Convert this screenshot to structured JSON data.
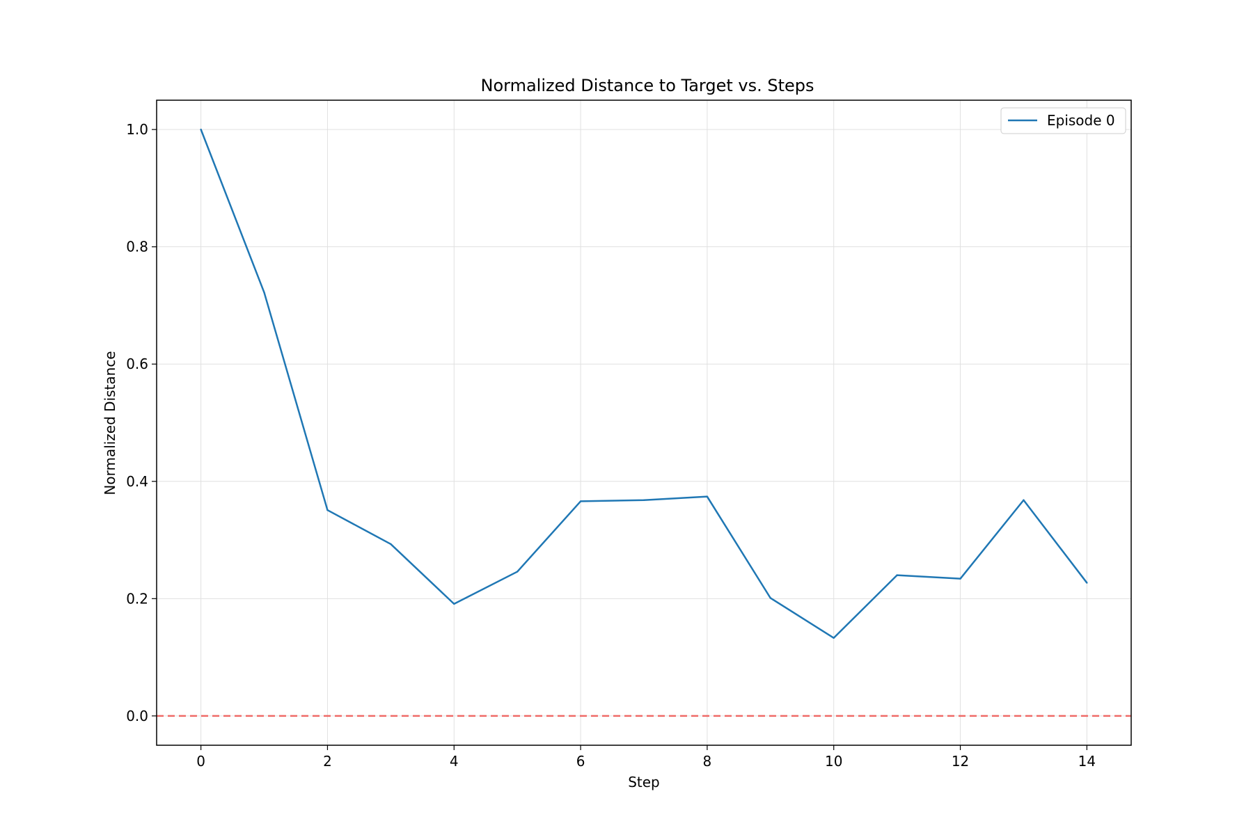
{
  "colors": {
    "series": "#1f77b4",
    "reference": "#ef5350",
    "grid": "#e0e0e0",
    "axis": "#000000"
  },
  "chart_data": {
    "type": "line",
    "title": "Normalized Distance to Target vs. Steps",
    "xlabel": "Step",
    "ylabel": "Normalized Distance",
    "xlim": [
      -0.7,
      14.7
    ],
    "ylim": [
      -0.05,
      1.05
    ],
    "xticks": [
      0,
      2,
      4,
      6,
      8,
      10,
      12,
      14
    ],
    "yticks": [
      0.0,
      0.2,
      0.4,
      0.6,
      0.8,
      1.0
    ],
    "xtick_labels": [
      "0",
      "2",
      "4",
      "6",
      "8",
      "10",
      "12",
      "14"
    ],
    "ytick_labels": [
      "0.0",
      "0.2",
      "0.4",
      "0.6",
      "0.8",
      "1.0"
    ],
    "grid": true,
    "legend_position": "top-right",
    "x": [
      0,
      1,
      2,
      3,
      4,
      5,
      6,
      7,
      8,
      9,
      10,
      11,
      12,
      13,
      14
    ],
    "series": [
      {
        "name": "Episode 0",
        "values": [
          1.0,
          0.722,
          0.351,
          0.293,
          0.191,
          0.246,
          0.366,
          0.368,
          0.374,
          0.201,
          0.133,
          0.24,
          0.234,
          0.368,
          0.227
        ]
      }
    ],
    "reference_line": {
      "y": 0.0,
      "style": "dashed"
    }
  }
}
